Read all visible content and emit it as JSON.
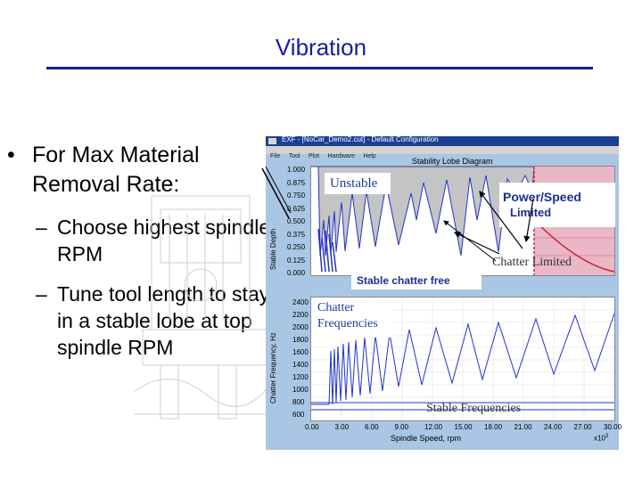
{
  "slide": {
    "title": "Vibration",
    "bullet1": {
      "marker": "•",
      "text": "For Max Material Removal Rate:"
    },
    "sub_bullets": [
      {
        "marker": "–",
        "text": "Choose highest spindle RPM"
      },
      {
        "marker": "–",
        "text": "Tune tool length to stay in a stable lobe at top spindle RPM"
      }
    ]
  },
  "screenshot": {
    "window_title": "EXF - [NoCar_Demo2.cut] - Default Configuration",
    "menu": [
      "File",
      "Tool",
      "Plot",
      "Hardware",
      "Help"
    ],
    "upper_chart": {
      "title": "Stability Lobe Diagram",
      "ylabel": "Stable Depth",
      "yticks": [
        "1.000",
        "0.875",
        "0.750",
        "0.625",
        "0.500",
        "0.375",
        "0.250",
        "0.125",
        "0.000"
      ]
    },
    "lower_chart": {
      "ylabel": "Chatter Frequency, Hz",
      "yticks": [
        "2400",
        "2200",
        "2000",
        "1800",
        "1600",
        "1400",
        "1200",
        "1000",
        "800",
        "600"
      ],
      "xticks": [
        "0.00",
        "3.00",
        "6.00",
        "9.00",
        "12.00",
        "15.00",
        "18.00",
        "21.00",
        "24.00",
        "27.00",
        "30.00"
      ],
      "xlabel": "Spindle Speed, rpm",
      "xscale": "x10",
      "xscale_exp": "3"
    },
    "callouts": {
      "unstable": "Unstable",
      "power_speed_1": "Power/Speed",
      "power_speed_2": "Limited",
      "chatter_limited": "Chatter Limited",
      "stable_chatter_free": "Stable chatter free",
      "chatter_freq_1": "Chatter",
      "chatter_freq_2": "Frequencies",
      "stable_frequencies": "Stable Frequencies"
    },
    "colors": {
      "unstable_fill": "#c4c4c4",
      "lobe_line": "#2233cc",
      "power_limited_fill": "#e9b7c6",
      "boundary_red": "#cc2244",
      "frame_blue": "#a9c6e4"
    }
  }
}
